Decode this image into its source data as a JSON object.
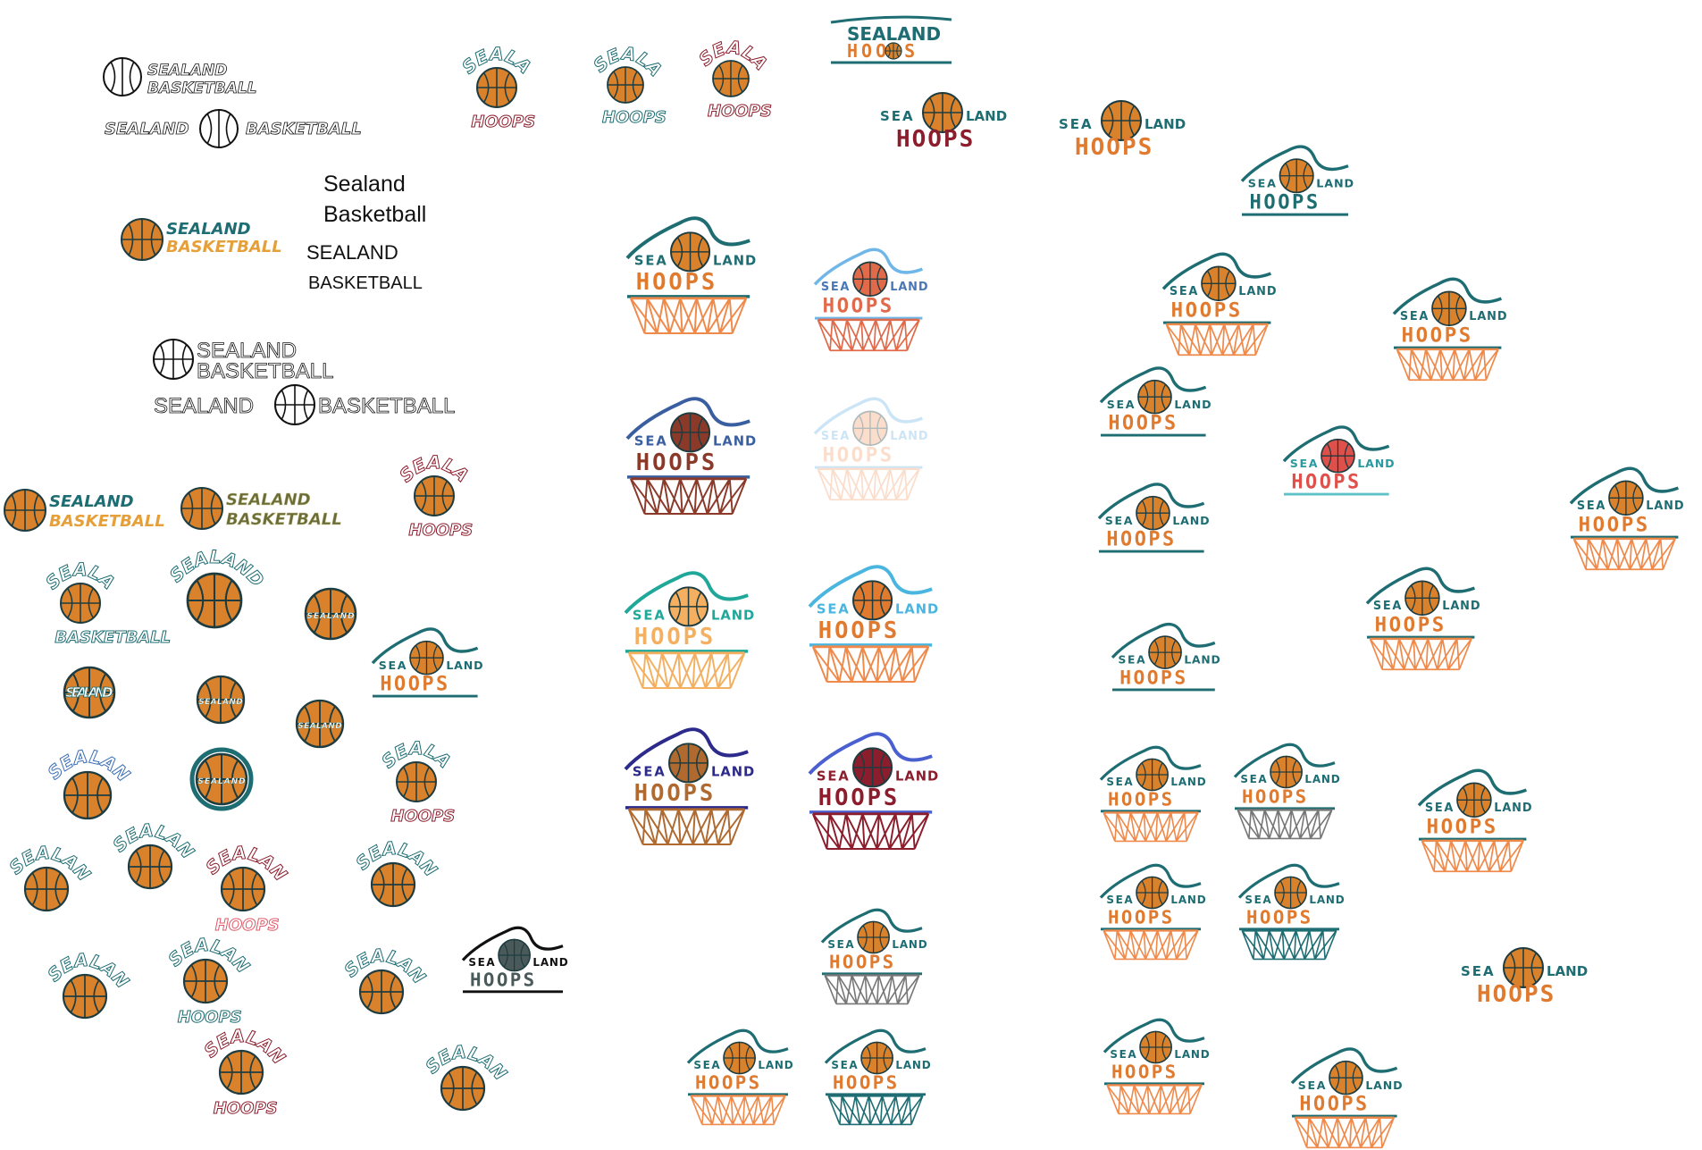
{
  "canvas": {
    "background": "#ffffff"
  },
  "colors": {
    "orange": "#e07a2e",
    "ballOrange": "#d9822b",
    "teal": "#1e6d73",
    "tealLight": "#2a8a8f",
    "maroon": "#8b1d2c",
    "ink": "#111111",
    "olive": "#6b6b3a",
    "rose": "#e05a6a",
    "netOrange": "#f08a4b",
    "gray": "#7a7a7a",
    "sky": "#6fb7e8",
    "navy": "#2c2a8a",
    "blue": "#3d6fb5"
  },
  "text": {
    "sealand_basketball": "SEALAND BASKETBALL",
    "sealand_basketball_title": "Sealand Basketball",
    "sealand_word": "SEALAND",
    "sealand_title": "Sealand",
    "basketball_word": "BASKETBALL",
    "basketball_title": "Basketball",
    "sealand_script": "SEALAND",
    "basketball_script": "BASKETBALL",
    "hoops": "HOOPS",
    "sea": "SEA",
    "land": "LAND"
  },
  "icons": [
    "basketball-icon",
    "hoop-net-icon",
    "wave-icon"
  ],
  "logos": [
    {
      "name": "outline-stacked",
      "variant": "stack-outline"
    },
    {
      "name": "outline-inline",
      "variant": "inline-outline"
    },
    {
      "name": "plain-title-case",
      "variant": "plain-two-line"
    },
    {
      "name": "plain-caps",
      "variant": "plain-caps"
    },
    {
      "name": "bold-caps-stacked",
      "variant": "bold-stack"
    },
    {
      "name": "bold-caps-inline",
      "variant": "bold-inline"
    },
    {
      "name": "ball-wordmark-teal-orange",
      "variant": "ball-word"
    },
    {
      "name": "ball-wordmark-olive",
      "variant": "ball-word"
    },
    {
      "name": "wave-hoop-grid",
      "variant": "wave-hoop"
    }
  ]
}
